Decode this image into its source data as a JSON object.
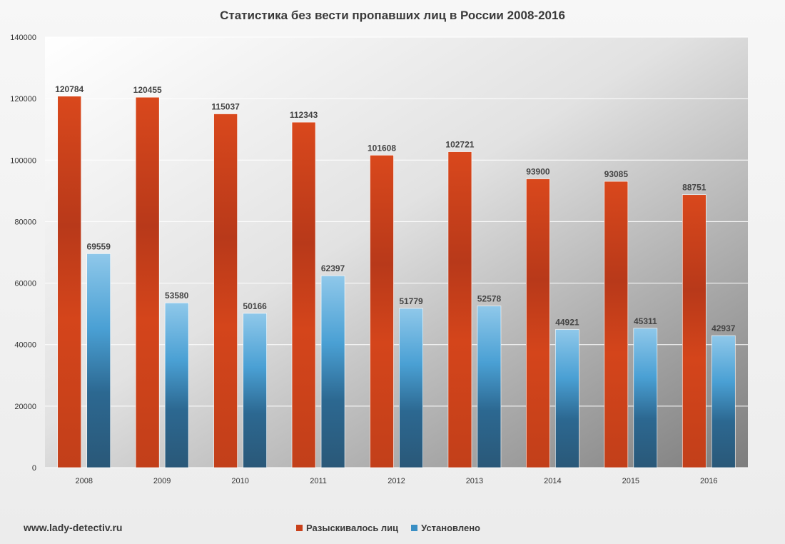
{
  "chart_data": {
    "type": "bar",
    "title": "Статистика  без вести пропавших  лиц в России 2008-2016",
    "categories": [
      "2008",
      "2009",
      "2010",
      "2011",
      "2012",
      "2013",
      "2014",
      "2015",
      "2016"
    ],
    "series": [
      {
        "name": "Разыскивалось лиц",
        "color": "#c9401a",
        "values": [
          120784,
          120455,
          115037,
          112343,
          101608,
          102721,
          93900,
          93085,
          88751
        ]
      },
      {
        "name": "Установлено",
        "color": "#3a8fc4",
        "values": [
          69559,
          53580,
          50166,
          62397,
          51779,
          52578,
          44921,
          45311,
          42937
        ]
      }
    ],
    "yticks": [
      0,
      20000,
      40000,
      60000,
      80000,
      100000,
      120000,
      140000
    ],
    "ylim": [
      0,
      140000
    ],
    "xlabel": "",
    "ylabel": "",
    "grid": true,
    "legend_position": "bottom"
  },
  "footer": {
    "site": "www.lady-detectiv.ru"
  }
}
